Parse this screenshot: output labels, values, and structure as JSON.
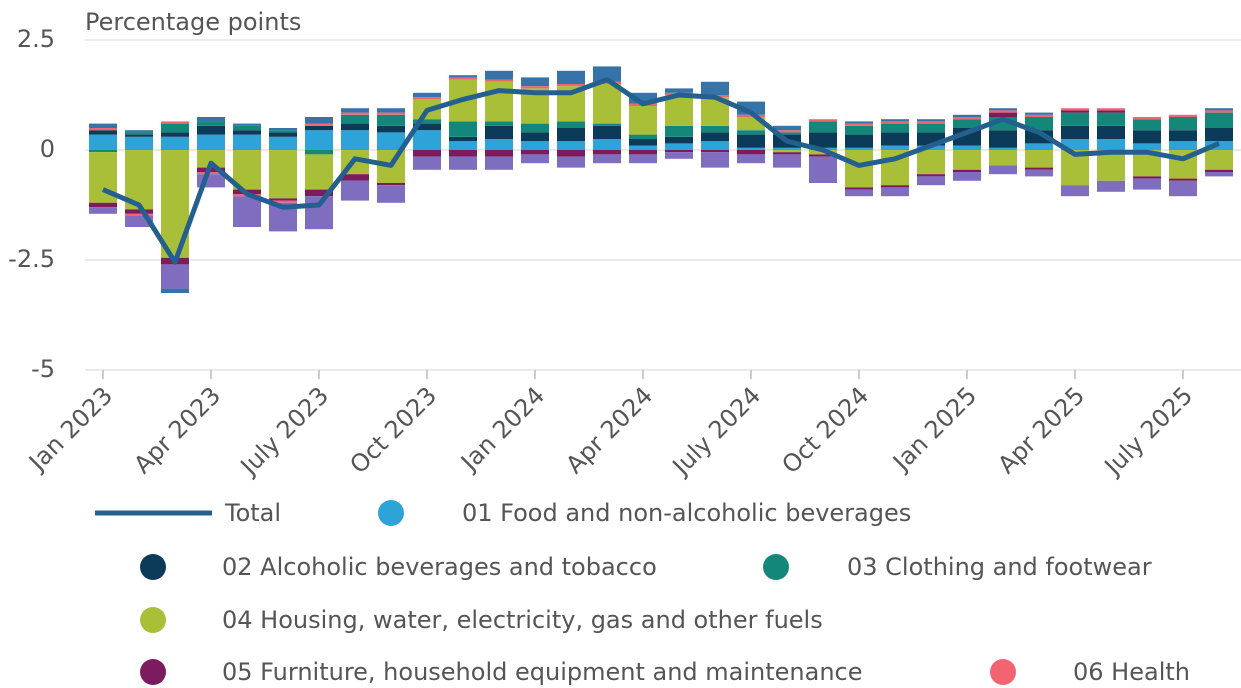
{
  "chart_data": {
    "type": "bar",
    "stacked": true,
    "y_label": "Percentage points",
    "categories": [
      "Jan 2023",
      null,
      null,
      "Apr 2023",
      null,
      null,
      "July 2023",
      null,
      null,
      "Oct 2023",
      null,
      null,
      "Jan 2024",
      null,
      null,
      "Apr 2024",
      null,
      null,
      "July 2024",
      null,
      null,
      "Oct 2024",
      null,
      null,
      "Jan 2025",
      null,
      null,
      "Apr 2025",
      null,
      null,
      "July 2025",
      null
    ],
    "ylim": [
      -5,
      2.5
    ],
    "yticks": [
      2.5,
      0,
      -2.5,
      -5
    ],
    "grid": true,
    "series": [
      {
        "name": "Total",
        "type": "line",
        "color": "#24608f",
        "values": [
          -0.9,
          -1.25,
          -2.55,
          -0.3,
          -1.0,
          -1.3,
          -1.25,
          -0.2,
          -0.35,
          0.9,
          1.15,
          1.35,
          1.3,
          1.3,
          1.6,
          1.05,
          1.25,
          1.2,
          0.85,
          0.2,
          0.0,
          -0.35,
          -0.2,
          0.1,
          0.4,
          0.7,
          0.4,
          -0.1,
          -0.05,
          -0.05,
          -0.2,
          0.15
        ]
      },
      {
        "name": "01 Food and non-alcoholic beverages",
        "color": "#2ea3d8",
        "values": [
          0.35,
          0.3,
          0.3,
          0.35,
          0.35,
          0.3,
          0.45,
          0.45,
          0.4,
          0.45,
          0.2,
          0.25,
          0.2,
          0.2,
          0.25,
          0.1,
          0.15,
          0.2,
          0.05,
          0.05,
          0.05,
          0.05,
          0.1,
          0.1,
          0.1,
          0.05,
          0.15,
          0.25,
          0.25,
          0.15,
          0.2,
          0.2
        ]
      },
      {
        "name": "02 Alcoholic beverages and tobacco",
        "color": "#0c3b5a",
        "values": [
          0.1,
          0.05,
          0.1,
          0.2,
          0.1,
          0.1,
          0.1,
          0.15,
          0.15,
          0.15,
          0.1,
          0.3,
          0.2,
          0.3,
          0.3,
          0.15,
          0.15,
          0.2,
          0.3,
          0.3,
          0.35,
          0.3,
          0.3,
          0.3,
          0.4,
          0.4,
          0.3,
          0.3,
          0.3,
          0.3,
          0.25,
          0.3
        ]
      },
      {
        "name": "03 Clothing and footwear",
        "color": "#13887a",
        "values": [
          -0.05,
          0.05,
          0.2,
          0.1,
          0.1,
          0.05,
          -0.1,
          0.2,
          0.25,
          0.1,
          0.35,
          0.1,
          0.2,
          0.15,
          0.05,
          0.1,
          0.25,
          0.15,
          0.1,
          0.05,
          0.25,
          0.2,
          0.2,
          0.2,
          0.2,
          0.3,
          0.3,
          0.3,
          0.3,
          0.25,
          0.3,
          0.35
        ]
      },
      {
        "name": "04 Housing, water, electricity, gas and other fuels",
        "color": "#a9bf37",
        "values": [
          -1.15,
          -1.35,
          -2.45,
          -0.4,
          -0.9,
          -1.1,
          -0.8,
          -0.55,
          -0.75,
          0.45,
          0.95,
          0.9,
          0.8,
          0.8,
          0.9,
          0.65,
          0.7,
          0.65,
          0.3,
          -0.05,
          -0.1,
          -0.85,
          -0.8,
          -0.55,
          -0.45,
          -0.35,
          -0.4,
          -0.8,
          -0.7,
          -0.6,
          -0.65,
          -0.45
        ]
      },
      {
        "name": "05 Furniture, household equipment and maintenance",
        "color": "#7c1b5d",
        "values": [
          -0.1,
          -0.1,
          -0.15,
          -0.1,
          -0.1,
          -0.05,
          -0.15,
          -0.15,
          -0.05,
          -0.15,
          -0.15,
          -0.15,
          -0.1,
          -0.15,
          -0.1,
          -0.1,
          -0.05,
          -0.05,
          -0.1,
          -0.05,
          -0.05,
          -0.05,
          -0.05,
          -0.05,
          -0.05,
          0.1,
          -0.05,
          0.05,
          0.05,
          -0.05,
          -0.05,
          -0.05
        ]
      },
      {
        "name": "06 Health",
        "color": "#f2646f",
        "values": [
          0.05,
          -0.05,
          0.05,
          -0.05,
          -0.05,
          -0.05,
          0.05,
          0.05,
          0.05,
          0.05,
          0.05,
          0.05,
          0.05,
          0.05,
          0.05,
          0.05,
          0.05,
          0.05,
          0.05,
          0.05,
          0.05,
          0.05,
          0.05,
          0.05,
          0.05,
          0.05,
          0.05,
          0.05,
          0.05,
          0.05,
          0.05,
          0.05
        ]
      },
      {
        "color": "#7f6dbf",
        "values": [
          -0.15,
          -0.25,
          -0.55,
          -0.3,
          -0.7,
          -0.65,
          -0.75,
          -0.45,
          -0.4,
          -0.3,
          -0.3,
          -0.3,
          -0.2,
          -0.25,
          -0.2,
          -0.2,
          -0.15,
          -0.35,
          -0.2,
          -0.3,
          -0.6,
          -0.15,
          -0.2,
          -0.2,
          -0.2,
          -0.2,
          -0.15,
          -0.25,
          -0.25,
          -0.25,
          -0.35,
          -0.1
        ]
      },
      {
        "color": "#3673a8",
        "values": [
          0.1,
          0.05,
          -0.1,
          0.1,
          0.05,
          0.05,
          0.15,
          0.1,
          0.1,
          0.1,
          0.05,
          0.2,
          0.2,
          0.3,
          0.35,
          0.25,
          0.1,
          0.3,
          0.3,
          0.1,
          0.0,
          0.05,
          0.05,
          0.05,
          0.05,
          0.05,
          0.05,
          0.0,
          0.0,
          0.0,
          0.0,
          0.05
        ]
      }
    ]
  }
}
